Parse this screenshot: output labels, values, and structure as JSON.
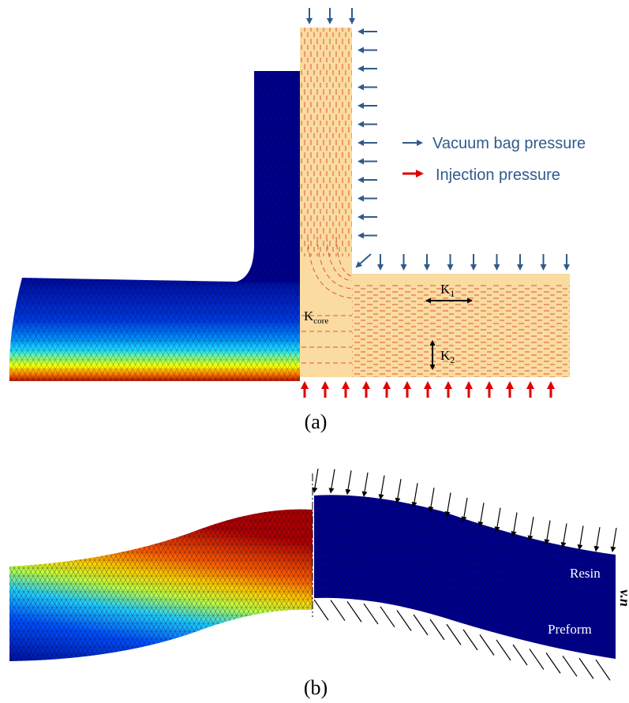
{
  "panel_a": {
    "caption": "(a)",
    "legend": {
      "vacuum_label": "Vacuum bag pressure",
      "injection_label": "Injection pressure",
      "vacuum_color": "#2f5a8c",
      "injection_color": "#e00000"
    },
    "labels": {
      "k_core": "K",
      "k_core_sub": "core",
      "k1": "K",
      "k1_sub": "1",
      "k2": "K",
      "k2_sub": "2"
    }
  },
  "panel_b": {
    "caption": "(b)",
    "resin_label": "Resin",
    "preform_label": "Preform",
    "normal_label": "v.n"
  },
  "colors": {
    "jet_dark_blue": "#00008f",
    "jet_blue": "#0050ff",
    "jet_cyan": "#20e0ff",
    "jet_yellow": "#ffff00",
    "jet_orange": "#ff8000",
    "jet_red": "#c80000",
    "preform_fill": "#fadba0",
    "fiber_color": "#d9573a"
  }
}
